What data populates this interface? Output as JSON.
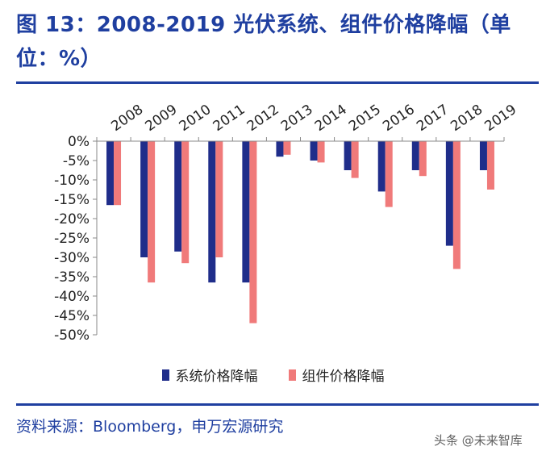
{
  "title": "图 13：2008-2019 光伏系统、组件价格降幅（单位：%）",
  "source": "资料来源：Bloomberg，申万宏源研究",
  "watermark": "头条 @未来智库",
  "colors": {
    "accent": "#1f3fa0",
    "series1": "#1f2d8a",
    "series2": "#f07a7a"
  },
  "chart_data": {
    "type": "bar",
    "categories": [
      "2008",
      "2009",
      "2010",
      "2011",
      "2012",
      "2013",
      "2014",
      "2015",
      "2016",
      "2017",
      "2018",
      "2019"
    ],
    "series": [
      {
        "name": "系统价格降幅",
        "values": [
          -16.5,
          -30,
          -28.5,
          -36.5,
          -36.5,
          -4,
          -5,
          -7.5,
          -13,
          -7.5,
          -27,
          -7.5
        ]
      },
      {
        "name": "组件价格降幅",
        "values": [
          -16.5,
          -36.5,
          -31.5,
          -30,
          -47,
          -3.5,
          -5.5,
          -9.5,
          -17,
          -9,
          -33,
          -12.5
        ]
      }
    ],
    "ylim": [
      -50,
      0
    ],
    "yticks": [
      0,
      -5,
      -10,
      -15,
      -20,
      -25,
      -30,
      -35,
      -40,
      -45,
      -50
    ],
    "ytick_labels": [
      "0%",
      "-5%",
      "-10%",
      "-15%",
      "-20%",
      "-25%",
      "-30%",
      "-35%",
      "-40%",
      "-45%",
      "-50%"
    ],
    "xaxis_position": "top",
    "legend_position": "bottom-center",
    "grid": false
  }
}
